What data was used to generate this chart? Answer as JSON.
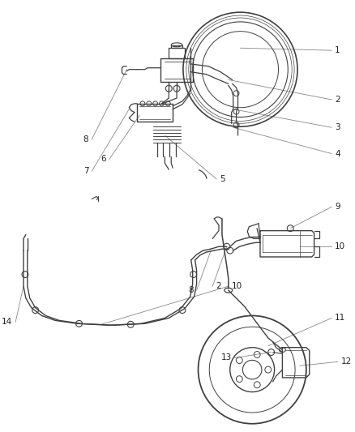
{
  "bg_color": "#ffffff",
  "line_color": "#404040",
  "label_color": "#222222",
  "leader_color": "#888888",
  "figsize": [
    4.38,
    5.33
  ],
  "dpi": 100,
  "fs_label": 7.5
}
